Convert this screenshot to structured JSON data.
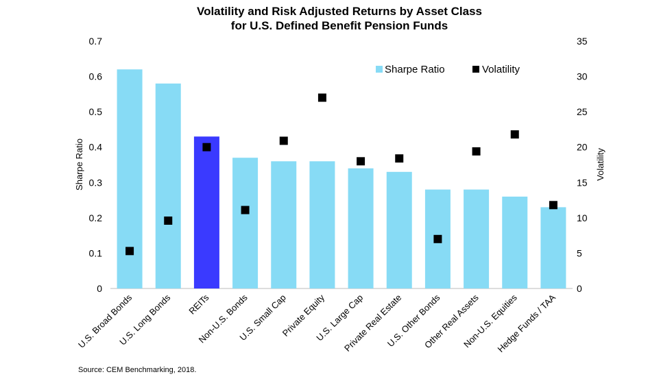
{
  "chart_data": {
    "type": "bar",
    "title": [
      "Volatility and Risk Adjusted Returns by Asset Class",
      "for U.S. Defined Benefit Pension Funds"
    ],
    "categories": [
      "U.S. Broad Bonds",
      "U.S. Long Bonds",
      "REITs",
      "Non-U.S. Bonds",
      "U.S. Small Cap",
      "Private Equity",
      "U.S. Large Cap",
      "Private Real Estate",
      "U.S. Other Bonds",
      "Other Real Assets",
      "Non-U.S. Equities",
      "Hedge Funds / TAA"
    ],
    "series": [
      {
        "name": "Sharpe Ratio",
        "type": "bar",
        "axis": "left",
        "color": "#87dbf5",
        "highlight_color": "#3a3aff",
        "highlight_category": "REITs",
        "values": [
          0.62,
          0.58,
          0.43,
          0.37,
          0.36,
          0.36,
          0.34,
          0.33,
          0.28,
          0.28,
          0.26,
          0.23
        ]
      },
      {
        "name": "Volatility",
        "type": "scatter",
        "axis": "right",
        "color": "#000000",
        "marker": "square",
        "values": [
          5.3,
          9.6,
          20.0,
          11.1,
          20.9,
          27.0,
          18.0,
          18.4,
          7.0,
          19.4,
          21.8,
          11.8
        ]
      }
    ],
    "ylabel": "Sharpe Ratio",
    "ylim": [
      0,
      0.7
    ],
    "yticks": [
      "0",
      "0.1",
      "0.2",
      "0.3",
      "0.4",
      "0.5",
      "0.6",
      "0.7"
    ],
    "y2label": "Volatility",
    "y2lim": [
      0,
      35
    ],
    "y2ticks": [
      "0",
      "5",
      "10",
      "15",
      "20",
      "25",
      "30",
      "35"
    ],
    "grid": false,
    "legend": "top-right"
  },
  "source": "Source: CEM Benchmarking,  2018."
}
